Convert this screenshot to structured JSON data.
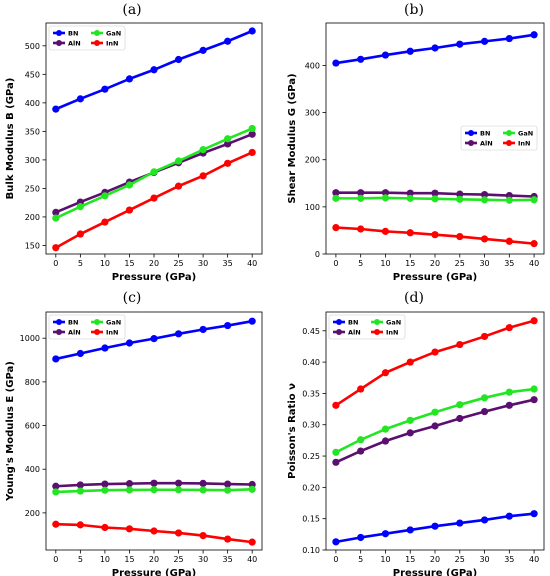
{
  "chart_data": [
    {
      "type": "line",
      "panel_label": "(a)",
      "xlabel": "Pressure (GPa)",
      "ylabel": "Bulk Modulus B (GPa)",
      "x": [
        0,
        5,
        10,
        15,
        20,
        25,
        30,
        35,
        40
      ],
      "xticks": [
        0,
        5,
        10,
        15,
        20,
        25,
        30,
        35,
        40
      ],
      "xlim": [
        -2,
        42
      ],
      "ylim": [
        135,
        540
      ],
      "yticks": [
        150,
        200,
        250,
        300,
        350,
        400,
        450,
        500
      ],
      "grid": false,
      "legend_position": "top-left",
      "series": [
        {
          "name": "BN",
          "color": "#0000ff",
          "values": [
            389,
            407,
            424,
            442,
            458,
            476,
            492,
            508,
            526
          ]
        },
        {
          "name": "AlN",
          "color": "#5b0f6e",
          "values": [
            208,
            226,
            243,
            261,
            278,
            295,
            312,
            328,
            345
          ]
        },
        {
          "name": "GaN",
          "color": "#22e622",
          "values": [
            198,
            218,
            237,
            256,
            279,
            298,
            318,
            337,
            355
          ]
        },
        {
          "name": "InN",
          "color": "#ff0000",
          "values": [
            146,
            170,
            191,
            212,
            233,
            254,
            272,
            294,
            313
          ]
        }
      ]
    },
    {
      "type": "line",
      "panel_label": "(b)",
      "xlabel": "Pressure (GPa)",
      "ylabel": "Shear Modulus G (GPa)",
      "x": [
        0,
        5,
        10,
        15,
        20,
        25,
        30,
        35,
        40
      ],
      "xticks": [
        0,
        5,
        10,
        15,
        20,
        25,
        30,
        35,
        40
      ],
      "xlim": [
        -2,
        42
      ],
      "ylim": [
        0,
        490
      ],
      "yticks": [
        0,
        100,
        200,
        300,
        400
      ],
      "grid": false,
      "legend_position": "center-right",
      "series": [
        {
          "name": "BN",
          "color": "#0000ff",
          "values": [
            405,
            413,
            422,
            430,
            437,
            445,
            451,
            457,
            465
          ]
        },
        {
          "name": "AlN",
          "color": "#5b0f6e",
          "values": [
            130,
            130,
            130,
            129,
            129,
            127,
            126,
            124,
            122
          ]
        },
        {
          "name": "GaN",
          "color": "#22e622",
          "values": [
            118,
            118,
            119,
            118,
            117,
            116,
            115,
            114,
            115
          ]
        },
        {
          "name": "InN",
          "color": "#ff0000",
          "values": [
            56,
            53,
            48,
            45,
            41,
            37,
            32,
            27,
            22
          ]
        }
      ]
    },
    {
      "type": "line",
      "panel_label": "(c)",
      "xlabel": "Pressure (GPa)",
      "ylabel": "Young's Modulus E (GPa)",
      "x": [
        0,
        5,
        10,
        15,
        20,
        25,
        30,
        35,
        40
      ],
      "xticks": [
        0,
        5,
        10,
        15,
        20,
        25,
        30,
        35,
        40
      ],
      "xlim": [
        -2,
        42
      ],
      "ylim": [
        30,
        1120
      ],
      "yticks": [
        200,
        400,
        600,
        800,
        1000
      ],
      "grid": false,
      "legend_position": "top-left",
      "series": [
        {
          "name": "BN",
          "color": "#0000ff",
          "values": [
            905,
            930,
            955,
            978,
            998,
            1020,
            1040,
            1058,
            1078
          ]
        },
        {
          "name": "AlN",
          "color": "#5b0f6e",
          "values": [
            322,
            328,
            332,
            334,
            336,
            336,
            335,
            332,
            330
          ]
        },
        {
          "name": "GaN",
          "color": "#22e622",
          "values": [
            296,
            300,
            304,
            305,
            306,
            306,
            305,
            304,
            308
          ]
        },
        {
          "name": "InN",
          "color": "#ff0000",
          "values": [
            148,
            145,
            133,
            127,
            117,
            108,
            96,
            80,
            66
          ]
        }
      ]
    },
    {
      "type": "line",
      "panel_label": "(d)",
      "xlabel": "Pressure (GPa)",
      "ylabel": "Poisson's Ratio ν",
      "x": [
        0,
        5,
        10,
        15,
        20,
        25,
        30,
        35,
        40
      ],
      "xticks": [
        0,
        5,
        10,
        15,
        20,
        25,
        30,
        35,
        40
      ],
      "xlim": [
        -2,
        42
      ],
      "ylim": [
        0.1,
        0.48
      ],
      "yticks": [
        0.1,
        0.15,
        0.2,
        0.25,
        0.3,
        0.35,
        0.4,
        0.45
      ],
      "yticklabels": [
        "0.10",
        "0.15",
        "0.20",
        "0.25",
        "0.30",
        "0.35",
        "0.40",
        "0.45"
      ],
      "grid": false,
      "legend_position": "top-left",
      "series": [
        {
          "name": "BN",
          "color": "#0000ff",
          "values": [
            0.113,
            0.12,
            0.126,
            0.132,
            0.138,
            0.143,
            0.148,
            0.154,
            0.158
          ]
        },
        {
          "name": "AlN",
          "color": "#5b0f6e",
          "values": [
            0.24,
            0.258,
            0.274,
            0.287,
            0.298,
            0.31,
            0.321,
            0.331,
            0.34
          ]
        },
        {
          "name": "GaN",
          "color": "#22e622",
          "values": [
            0.256,
            0.276,
            0.293,
            0.307,
            0.32,
            0.332,
            0.343,
            0.352,
            0.357
          ]
        },
        {
          "name": "InN",
          "color": "#ff0000",
          "values": [
            0.331,
            0.357,
            0.383,
            0.4,
            0.416,
            0.428,
            0.441,
            0.455,
            0.466
          ]
        }
      ]
    }
  ]
}
